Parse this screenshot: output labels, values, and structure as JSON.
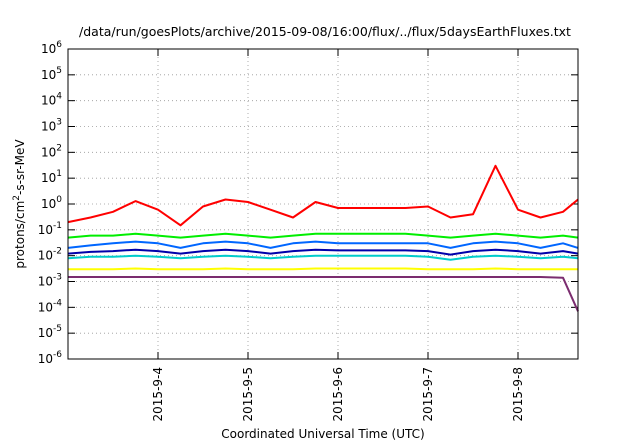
{
  "chart_data": {
    "type": "line",
    "title": "/data/run/goesPlots/archive/2015-09-08/16:00/flux/../flux/5daysEarthFluxes.txt",
    "xlabel": "Coordinated Universal Time (UTC)",
    "ylabel": "protons/cm²-s-sr-MeV",
    "yscale": "log",
    "ylim": [
      1e-06,
      1000000.0
    ],
    "xlim": [
      "2015-09-03T00:00",
      "2015-09-08T16:00"
    ],
    "grid": true,
    "y_ticks": [
      {
        "base": "10",
        "exp": "-6"
      },
      {
        "base": "10",
        "exp": "-5"
      },
      {
        "base": "10",
        "exp": "-4"
      },
      {
        "base": "10",
        "exp": "-3"
      },
      {
        "base": "10",
        "exp": "-2"
      },
      {
        "base": "10",
        "exp": "-1"
      },
      {
        "base": "10",
        "exp": "0"
      },
      {
        "base": "10",
        "exp": "1"
      },
      {
        "base": "10",
        "exp": "2"
      },
      {
        "base": "10",
        "exp": "3"
      },
      {
        "base": "10",
        "exp": "4"
      },
      {
        "base": "10",
        "exp": "5"
      },
      {
        "base": "10",
        "exp": "6"
      }
    ],
    "x_ticks": [
      {
        "label": "2015-9-4",
        "x": "2015-09-04T00:00"
      },
      {
        "label": "2015-9-5",
        "x": "2015-09-05T00:00"
      },
      {
        "label": "2015-9-6",
        "x": "2015-09-06T00:00"
      },
      {
        "label": "2015-9-7",
        "x": "2015-09-07T00:00"
      },
      {
        "label": "2015-9-8",
        "x": "2015-09-08T00:00"
      }
    ],
    "series": [
      {
        "color": "#ff0000",
        "x": [
          "2015-09-03T00:00",
          "2015-09-03T06:00",
          "2015-09-03T12:00",
          "2015-09-03T18:00",
          "2015-09-04T00:00",
          "2015-09-04T06:00",
          "2015-09-04T12:00",
          "2015-09-04T18:00",
          "2015-09-05T00:00",
          "2015-09-05T06:00",
          "2015-09-05T12:00",
          "2015-09-05T18:00",
          "2015-09-06T00:00",
          "2015-09-06T06:00",
          "2015-09-06T12:00",
          "2015-09-06T18:00",
          "2015-09-07T00:00",
          "2015-09-07T06:00",
          "2015-09-07T12:00",
          "2015-09-07T18:00",
          "2015-09-08T00:00",
          "2015-09-08T06:00",
          "2015-09-08T12:00",
          "2015-09-08T16:00"
        ],
        "values": [
          0.2,
          0.3,
          0.5,
          1.3,
          0.6,
          0.15,
          0.8,
          1.5,
          1.2,
          0.6,
          0.3,
          1.2,
          0.7,
          0.7,
          0.7,
          0.7,
          0.8,
          0.3,
          0.4,
          30,
          0.6,
          0.3,
          0.5,
          1.5
        ]
      },
      {
        "color": "#00ee00",
        "x": [
          "2015-09-03T00:00",
          "2015-09-03T06:00",
          "2015-09-03T12:00",
          "2015-09-03T18:00",
          "2015-09-04T00:00",
          "2015-09-04T06:00",
          "2015-09-04T12:00",
          "2015-09-04T18:00",
          "2015-09-05T00:00",
          "2015-09-05T06:00",
          "2015-09-05T12:00",
          "2015-09-05T18:00",
          "2015-09-06T00:00",
          "2015-09-06T06:00",
          "2015-09-06T12:00",
          "2015-09-06T18:00",
          "2015-09-07T00:00",
          "2015-09-07T06:00",
          "2015-09-07T12:00",
          "2015-09-07T18:00",
          "2015-09-08T00:00",
          "2015-09-08T06:00",
          "2015-09-08T12:00",
          "2015-09-08T16:00"
        ],
        "values": [
          0.05,
          0.06,
          0.06,
          0.07,
          0.06,
          0.05,
          0.06,
          0.07,
          0.06,
          0.05,
          0.06,
          0.07,
          0.07,
          0.07,
          0.07,
          0.07,
          0.06,
          0.05,
          0.06,
          0.07,
          0.06,
          0.05,
          0.06,
          0.05
        ]
      },
      {
        "color": "#00cccc",
        "x": [
          "2015-09-03T00:00",
          "2015-09-03T06:00",
          "2015-09-03T12:00",
          "2015-09-03T18:00",
          "2015-09-04T00:00",
          "2015-09-04T06:00",
          "2015-09-04T12:00",
          "2015-09-04T18:00",
          "2015-09-05T00:00",
          "2015-09-05T06:00",
          "2015-09-05T12:00",
          "2015-09-05T18:00",
          "2015-09-06T00:00",
          "2015-09-06T06:00",
          "2015-09-06T12:00",
          "2015-09-06T18:00",
          "2015-09-07T00:00",
          "2015-09-07T06:00",
          "2015-09-07T12:00",
          "2015-09-07T18:00",
          "2015-09-08T00:00",
          "2015-09-08T06:00",
          "2015-09-08T12:00",
          "2015-09-08T16:00"
        ],
        "values": [
          0.008,
          0.009,
          0.009,
          0.01,
          0.009,
          0.008,
          0.009,
          0.01,
          0.009,
          0.008,
          0.009,
          0.01,
          0.01,
          0.01,
          0.01,
          0.01,
          0.009,
          0.007,
          0.009,
          0.01,
          0.009,
          0.008,
          0.009,
          0.008
        ]
      },
      {
        "color": "#0066ff",
        "x": [
          "2015-09-03T00:00",
          "2015-09-03T06:00",
          "2015-09-03T12:00",
          "2015-09-03T18:00",
          "2015-09-04T00:00",
          "2015-09-04T06:00",
          "2015-09-04T12:00",
          "2015-09-04T18:00",
          "2015-09-05T00:00",
          "2015-09-05T06:00",
          "2015-09-05T12:00",
          "2015-09-05T18:00",
          "2015-09-06T00:00",
          "2015-09-06T06:00",
          "2015-09-06T12:00",
          "2015-09-06T18:00",
          "2015-09-07T00:00",
          "2015-09-07T06:00",
          "2015-09-07T12:00",
          "2015-09-07T18:00",
          "2015-09-08T00:00",
          "2015-09-08T06:00",
          "2015-09-08T12:00",
          "2015-09-08T16:00"
        ],
        "values": [
          0.02,
          0.025,
          0.03,
          0.035,
          0.03,
          0.02,
          0.03,
          0.035,
          0.03,
          0.02,
          0.03,
          0.035,
          0.03,
          0.03,
          0.03,
          0.03,
          0.03,
          0.02,
          0.03,
          0.035,
          0.03,
          0.02,
          0.03,
          0.02
        ]
      },
      {
        "color": "#0000aa",
        "x": [
          "2015-09-03T00:00",
          "2015-09-03T06:00",
          "2015-09-03T12:00",
          "2015-09-03T18:00",
          "2015-09-04T00:00",
          "2015-09-04T06:00",
          "2015-09-04T12:00",
          "2015-09-04T18:00",
          "2015-09-05T00:00",
          "2015-09-05T06:00",
          "2015-09-05T12:00",
          "2015-09-05T18:00",
          "2015-09-06T00:00",
          "2015-09-06T06:00",
          "2015-09-06T12:00",
          "2015-09-06T18:00",
          "2015-09-07T00:00",
          "2015-09-07T06:00",
          "2015-09-07T12:00",
          "2015-09-07T18:00",
          "2015-09-08T00:00",
          "2015-09-08T06:00",
          "2015-09-08T12:00",
          "2015-09-08T16:00"
        ],
        "values": [
          0.012,
          0.014,
          0.015,
          0.017,
          0.015,
          0.012,
          0.015,
          0.017,
          0.015,
          0.012,
          0.015,
          0.017,
          0.016,
          0.016,
          0.016,
          0.016,
          0.015,
          0.011,
          0.015,
          0.017,
          0.015,
          0.012,
          0.015,
          0.012
        ]
      },
      {
        "color": "#ffff00",
        "x": [
          "2015-09-03T00:00",
          "2015-09-03T06:00",
          "2015-09-03T12:00",
          "2015-09-03T18:00",
          "2015-09-04T00:00",
          "2015-09-04T06:00",
          "2015-09-04T12:00",
          "2015-09-04T18:00",
          "2015-09-05T00:00",
          "2015-09-05T06:00",
          "2015-09-05T12:00",
          "2015-09-05T18:00",
          "2015-09-06T00:00",
          "2015-09-06T06:00",
          "2015-09-06T12:00",
          "2015-09-06T18:00",
          "2015-09-07T00:00",
          "2015-09-07T06:00",
          "2015-09-07T12:00",
          "2015-09-07T18:00",
          "2015-09-08T00:00",
          "2015-09-08T06:00",
          "2015-09-08T12:00",
          "2015-09-08T16:00"
        ],
        "values": [
          0.003,
          0.003,
          0.003,
          0.0032,
          0.003,
          0.003,
          0.003,
          0.0032,
          0.003,
          0.003,
          0.003,
          0.0032,
          0.0032,
          0.0032,
          0.0032,
          0.0032,
          0.003,
          0.003,
          0.003,
          0.0032,
          0.003,
          0.003,
          0.003,
          0.003
        ]
      },
      {
        "color": "#7b2d6f",
        "x": [
          "2015-09-03T00:00",
          "2015-09-03T06:00",
          "2015-09-03T12:00",
          "2015-09-03T18:00",
          "2015-09-04T00:00",
          "2015-09-04T06:00",
          "2015-09-04T12:00",
          "2015-09-04T18:00",
          "2015-09-05T00:00",
          "2015-09-05T06:00",
          "2015-09-05T12:00",
          "2015-09-05T18:00",
          "2015-09-06T00:00",
          "2015-09-06T06:00",
          "2015-09-06T12:00",
          "2015-09-06T18:00",
          "2015-09-07T00:00",
          "2015-09-07T06:00",
          "2015-09-07T12:00",
          "2015-09-07T18:00",
          "2015-09-08T00:00",
          "2015-09-08T06:00",
          "2015-09-08T12:00",
          "2015-09-08T16:00"
        ],
        "values": [
          0.0015,
          0.0015,
          0.0015,
          0.0015,
          0.0015,
          0.0015,
          0.0015,
          0.0015,
          0.0015,
          0.0015,
          0.0015,
          0.0015,
          0.0015,
          0.0015,
          0.0015,
          0.0015,
          0.0015,
          0.0015,
          0.0015,
          0.0015,
          0.0015,
          0.0015,
          0.0014,
          7e-05
        ]
      }
    ]
  }
}
